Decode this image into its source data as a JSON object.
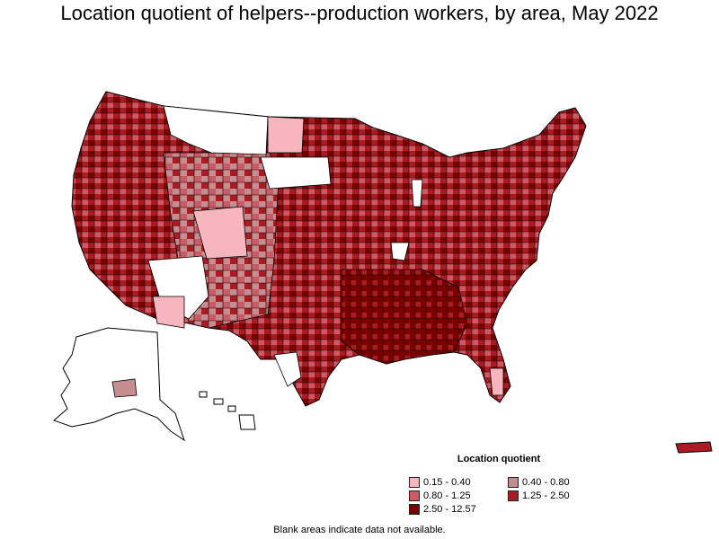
{
  "title": "Location quotient of helpers--production workers, by area, May 2022",
  "legend": {
    "title": "Location quotient",
    "items": [
      {
        "label": "0.15 - 0.40",
        "color": "#f7b6be"
      },
      {
        "label": "0.40 - 0.80",
        "color": "#c48d90"
      },
      {
        "label": "0.80 - 1.25",
        "color": "#cc5a64"
      },
      {
        "label": "1.25 - 2.50",
        "color": "#a91c24"
      },
      {
        "label": "2.50 - 12.57",
        "color": "#7a0000"
      }
    ]
  },
  "note": "Blank areas indicate data not available.",
  "no_data_color": "#ffffff",
  "border_color": "#000000"
}
